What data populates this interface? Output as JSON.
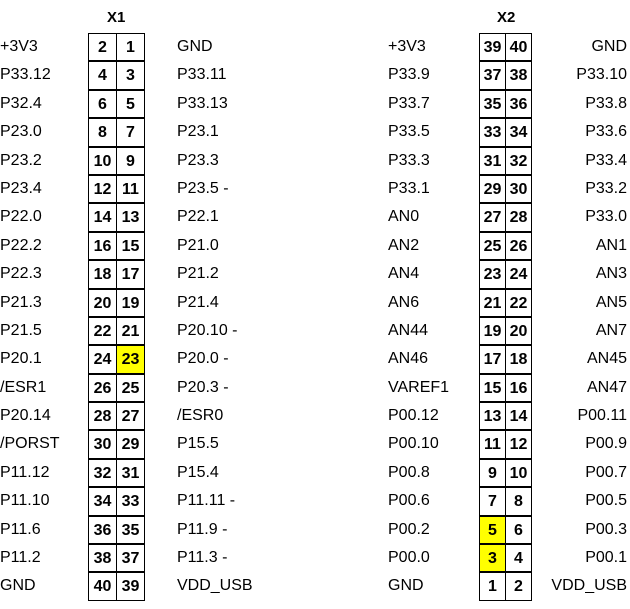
{
  "connectors": [
    {
      "title": "X1",
      "highlight_color": "#ffff00",
      "rows": [
        {
          "left": "+3V3",
          "pin_a": "2",
          "pin_b": "1",
          "right": "GND",
          "hl": []
        },
        {
          "left": "P33.12",
          "pin_a": "4",
          "pin_b": "3",
          "right": "P33.11",
          "hl": []
        },
        {
          "left": "P32.4",
          "pin_a": "6",
          "pin_b": "5",
          "right": "P33.13",
          "hl": []
        },
        {
          "left": "P23.0",
          "pin_a": "8",
          "pin_b": "7",
          "right": "P23.1",
          "hl": []
        },
        {
          "left": "P23.2",
          "pin_a": "10",
          "pin_b": "9",
          "right": "P23.3",
          "hl": []
        },
        {
          "left": "P23.4",
          "pin_a": "12",
          "pin_b": "11",
          "right": "P23.5 -",
          "hl": []
        },
        {
          "left": "P22.0",
          "pin_a": "14",
          "pin_b": "13",
          "right": "P22.1",
          "hl": []
        },
        {
          "left": "P22.2",
          "pin_a": "16",
          "pin_b": "15",
          "right": "P21.0",
          "hl": []
        },
        {
          "left": "P22.3",
          "pin_a": "18",
          "pin_b": "17",
          "right": "P21.2",
          "hl": []
        },
        {
          "left": "P21.3",
          "pin_a": "20",
          "pin_b": "19",
          "right": "P21.4",
          "hl": []
        },
        {
          "left": "P21.5",
          "pin_a": "22",
          "pin_b": "21",
          "right": "P20.10 -",
          "hl": []
        },
        {
          "left": "P20.1",
          "pin_a": "24",
          "pin_b": "23",
          "right": "P20.0 -",
          "hl": [
            "b"
          ]
        },
        {
          "left": "/ESR1",
          "pin_a": "26",
          "pin_b": "25",
          "right": "P20.3 -",
          "hl": []
        },
        {
          "left": "P20.14",
          "pin_a": "28",
          "pin_b": "27",
          "right": "/ESR0",
          "hl": []
        },
        {
          "left": "/PORST",
          "pin_a": "30",
          "pin_b": "29",
          "right": "P15.5",
          "hl": []
        },
        {
          "left": "P11.12",
          "pin_a": "32",
          "pin_b": "31",
          "right": "P15.4",
          "hl": []
        },
        {
          "left": "P11.10",
          "pin_a": "34",
          "pin_b": "33",
          "right": "P11.11 -",
          "hl": []
        },
        {
          "left": "P11.6",
          "pin_a": "36",
          "pin_b": "35",
          "right": "P11.9 -",
          "hl": []
        },
        {
          "left": "P11.2",
          "pin_a": "38",
          "pin_b": "37",
          "right": "P11.3 -",
          "hl": []
        },
        {
          "left": "GND",
          "pin_a": "40",
          "pin_b": "39",
          "right": "VDD_USB",
          "hl": []
        }
      ]
    },
    {
      "title": "X2",
      "highlight_color": "#ffff00",
      "rows": [
        {
          "left": "+3V3",
          "pin_a": "39",
          "pin_b": "40",
          "right": "GND",
          "hl": []
        },
        {
          "left": "P33.9",
          "pin_a": "37",
          "pin_b": "38",
          "right": "P33.10",
          "hl": []
        },
        {
          "left": "P33.7",
          "pin_a": "35",
          "pin_b": "36",
          "right": "P33.8",
          "hl": []
        },
        {
          "left": "P33.5",
          "pin_a": "33",
          "pin_b": "34",
          "right": "P33.6",
          "hl": []
        },
        {
          "left": "P33.3",
          "pin_a": "31",
          "pin_b": "32",
          "right": "P33.4",
          "hl": []
        },
        {
          "left": "P33.1",
          "pin_a": "29",
          "pin_b": "30",
          "right": "P33.2",
          "hl": []
        },
        {
          "left": "AN0",
          "pin_a": "27",
          "pin_b": "28",
          "right": "P33.0",
          "hl": []
        },
        {
          "left": "AN2",
          "pin_a": "25",
          "pin_b": "26",
          "right": "AN1",
          "hl": []
        },
        {
          "left": "AN4",
          "pin_a": "23",
          "pin_b": "24",
          "right": "AN3",
          "hl": []
        },
        {
          "left": "AN6",
          "pin_a": "21",
          "pin_b": "22",
          "right": "AN5",
          "hl": []
        },
        {
          "left": "AN44",
          "pin_a": "19",
          "pin_b": "20",
          "right": "AN7",
          "hl": []
        },
        {
          "left": "AN46",
          "pin_a": "17",
          "pin_b": "18",
          "right": "AN45",
          "hl": []
        },
        {
          "left": "VAREF1",
          "pin_a": "15",
          "pin_b": "16",
          "right": "AN47",
          "hl": []
        },
        {
          "left": "P00.12",
          "pin_a": "13",
          "pin_b": "14",
          "right": "P00.11",
          "hl": []
        },
        {
          "left": "P00.10",
          "pin_a": "11",
          "pin_b": "12",
          "right": "P00.9",
          "hl": []
        },
        {
          "left": "P00.8",
          "pin_a": "9",
          "pin_b": "10",
          "right": "P00.7",
          "hl": []
        },
        {
          "left": "P00.6",
          "pin_a": "7",
          "pin_b": "8",
          "right": "P00.5",
          "hl": []
        },
        {
          "left": "P00.2",
          "pin_a": "5",
          "pin_b": "6",
          "right": "P00.3",
          "hl": [
            "a"
          ]
        },
        {
          "left": "P00.0",
          "pin_a": "3",
          "pin_b": "4",
          "right": "P00.1",
          "hl": [
            "a"
          ]
        },
        {
          "left": "GND",
          "pin_a": "1",
          "pin_b": "2",
          "right": "VDD_USB",
          "hl": []
        }
      ]
    }
  ]
}
